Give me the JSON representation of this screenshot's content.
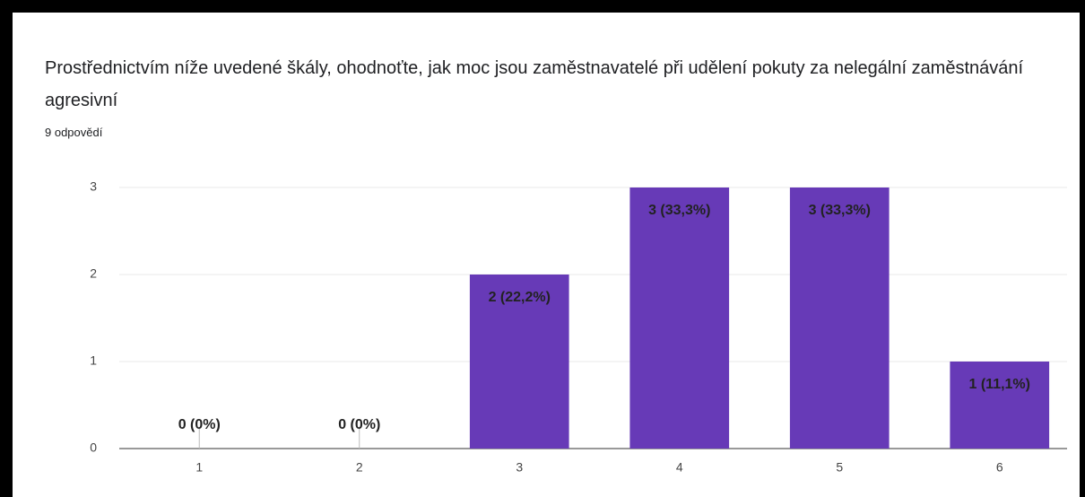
{
  "chart_data": {
    "type": "bar",
    "title": "Prostřednictvím níže uvedené škály, ohodnoťte, jak moc jsou zaměstnavatelé při udělení pokuty za nelegální zaměstnávání agresivní",
    "subtitle": "9 odpovědí",
    "categories": [
      "1",
      "2",
      "3",
      "4",
      "5",
      "6"
    ],
    "values": [
      0,
      0,
      2,
      3,
      3,
      1
    ],
    "value_labels": [
      "0 (0%)",
      "0 (0%)",
      "2 (22,2%)",
      "3 (33,3%)",
      "3 (33,3%)",
      "1 (11,1%)"
    ],
    "color": "#673ab7",
    "ylim": [
      0,
      3
    ],
    "yticks": [
      0,
      1,
      2,
      3
    ],
    "grid": true
  }
}
